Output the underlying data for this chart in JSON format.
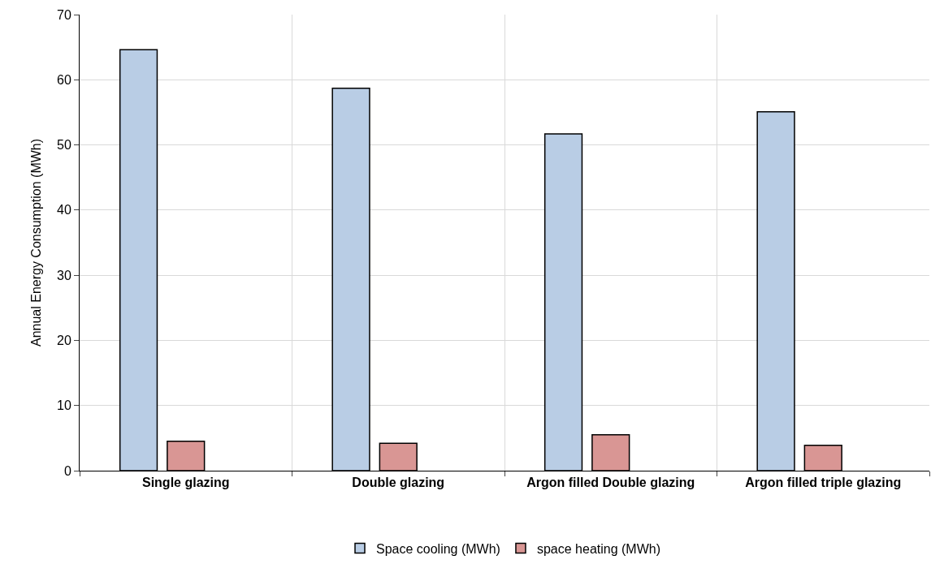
{
  "chart_data": {
    "type": "bar",
    "ylabel": "Annual Energy Consumption (MWh)",
    "categories": [
      "Single glazing",
      "Double glazing",
      "Argon filled Double glazing",
      "Argon filled triple glazing"
    ],
    "series": [
      {
        "name": "Space cooling (MWh)",
        "color": "#b9cde5",
        "values": [
          64.6,
          58.7,
          51.7,
          55.1
        ]
      },
      {
        "name": "space heating (MWh)",
        "color": "#d99694",
        "values": [
          4.5,
          4.2,
          5.5,
          3.9
        ]
      }
    ],
    "ylim": [
      0,
      70
    ],
    "yticks": [
      0,
      10,
      20,
      30,
      40,
      50,
      60,
      70
    ],
    "grid": true,
    "legend": "bottom"
  }
}
